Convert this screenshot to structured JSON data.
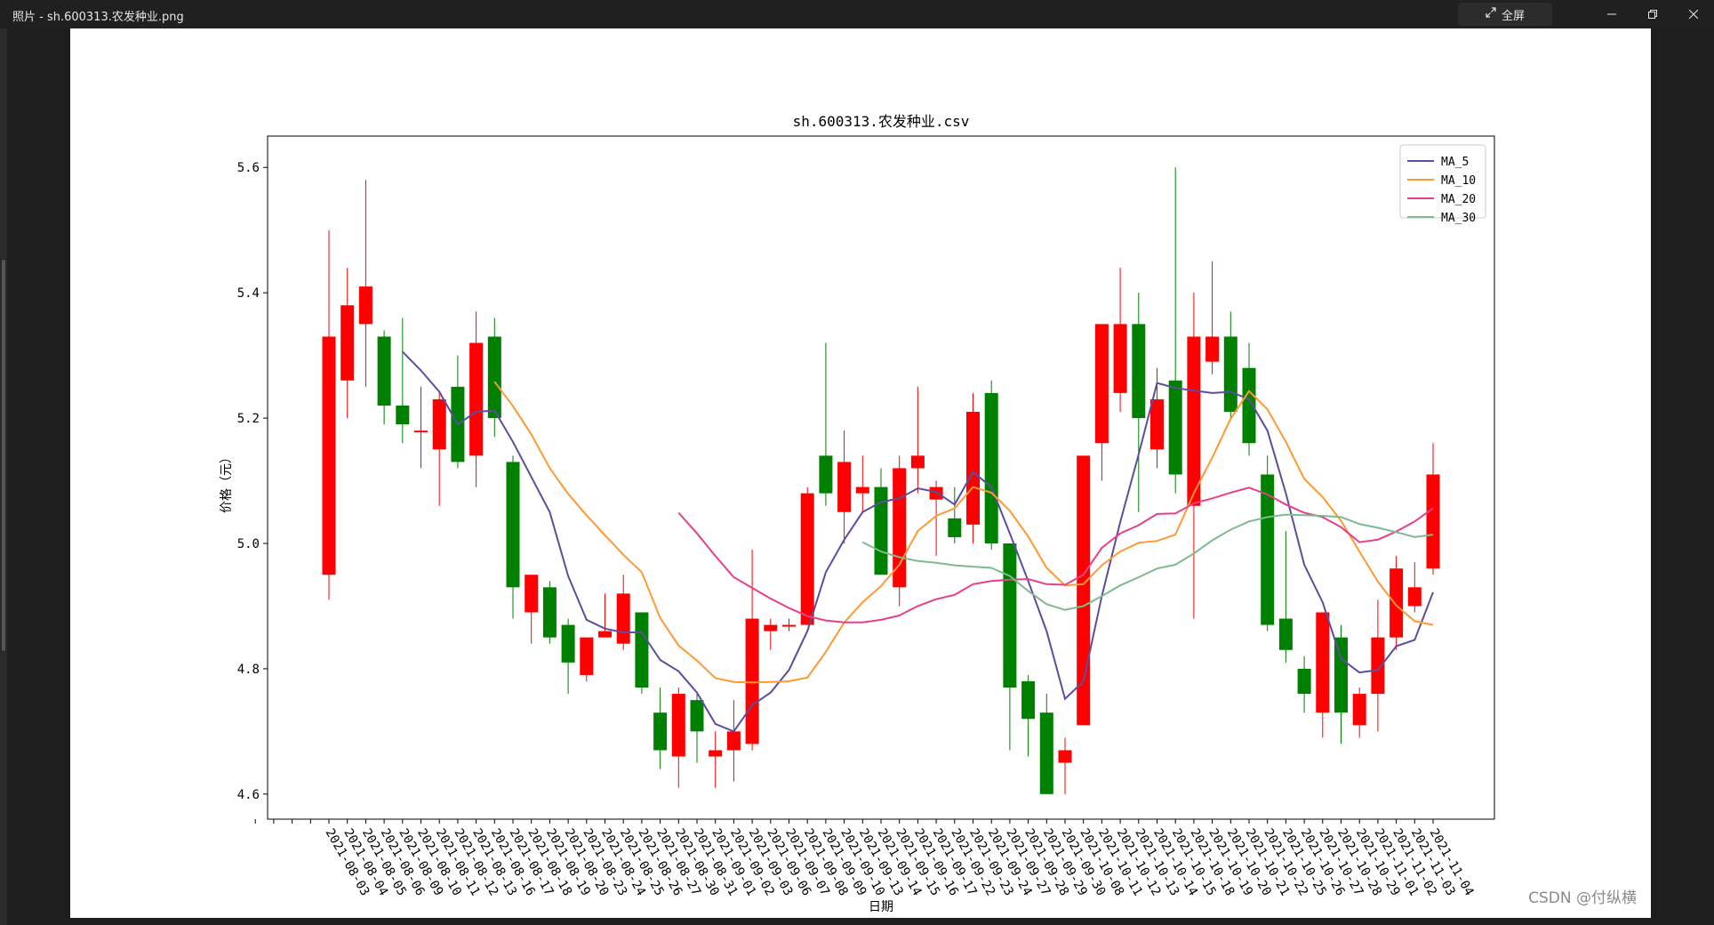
{
  "window": {
    "title": "照片 - sh.600313.农发种业.png",
    "fullscreen_label": "全屏",
    "minimize_icon": "minimize-icon",
    "restore_icon": "restore-icon",
    "close_icon": "close-icon"
  },
  "watermark": "CSDN @付纵横",
  "colors": {
    "up": "#ff0000",
    "down": "#008000",
    "ma5": "#5b4da0",
    "ma10": "#ff9933",
    "ma20": "#e6408a",
    "ma30": "#7dbb8f"
  },
  "chart_data": {
    "type": "candlestick",
    "title": "sh.600313.农发种业.csv",
    "xlabel": "日期",
    "ylabel": "价格（元）",
    "ylim": [
      4.56,
      5.65
    ],
    "yticks": [
      "4.6",
      "4.8",
      "5.0",
      "5.2",
      "5.4",
      "5.6"
    ],
    "legend": {
      "position": "top-right",
      "entries": [
        "MA_5",
        "MA_10",
        "MA_20",
        "MA_30"
      ]
    },
    "dates": [
      "2021-08-03",
      "2021-08-04",
      "2021-08-05",
      "2021-08-06",
      "2021-08-09",
      "2021-08-10",
      "2021-08-11",
      "2021-08-12",
      "2021-08-13",
      "2021-08-16",
      "2021-08-17",
      "2021-08-18",
      "2021-08-19",
      "2021-08-20",
      "2021-08-23",
      "2021-08-24",
      "2021-08-25",
      "2021-08-26",
      "2021-08-27",
      "2021-08-30",
      "2021-08-31",
      "2021-09-01",
      "2021-09-02",
      "2021-09-03",
      "2021-09-06",
      "2021-09-07",
      "2021-09-08",
      "2021-09-09",
      "2021-09-10",
      "2021-09-13",
      "2021-09-14",
      "2021-09-15",
      "2021-09-16",
      "2021-09-17",
      "2021-09-22",
      "2021-09-23",
      "2021-09-24",
      "2021-09-27",
      "2021-09-28",
      "2021-09-29",
      "2021-09-30",
      "2021-10-08",
      "2021-10-11",
      "2021-10-12",
      "2021-10-13",
      "2021-10-14",
      "2021-10-15",
      "2021-10-18",
      "2021-10-19",
      "2021-10-20",
      "2021-10-21",
      "2021-10-22",
      "2021-10-25",
      "2021-10-26",
      "2021-10-27",
      "2021-10-28",
      "2021-10-29",
      "2021-11-01",
      "2021-11-02",
      "2021-11-03",
      "2021-11-04"
    ],
    "candles": [
      {
        "o": 4.95,
        "c": 5.33,
        "h": 5.5,
        "l": 4.91
      },
      {
        "o": 5.26,
        "c": 5.38,
        "h": 5.44,
        "l": 5.2
      },
      {
        "o": 5.35,
        "c": 5.41,
        "h": 5.58,
        "l": 5.25
      },
      {
        "o": 5.33,
        "c": 5.22,
        "h": 5.34,
        "l": 5.19
      },
      {
        "o": 5.22,
        "c": 5.19,
        "h": 5.36,
        "l": 5.16
      },
      {
        "o": 5.18,
        "c": 5.18,
        "h": 5.25,
        "l": 5.12
      },
      {
        "o": 5.15,
        "c": 5.23,
        "h": 5.24,
        "l": 5.06
      },
      {
        "o": 5.25,
        "c": 5.13,
        "h": 5.3,
        "l": 5.12
      },
      {
        "o": 5.14,
        "c": 5.32,
        "h": 5.37,
        "l": 5.09
      },
      {
        "o": 5.33,
        "c": 5.2,
        "h": 5.36,
        "l": 5.17
      },
      {
        "o": 5.13,
        "c": 4.93,
        "h": 5.14,
        "l": 4.88
      },
      {
        "o": 4.89,
        "c": 4.95,
        "h": 4.95,
        "l": 4.84
      },
      {
        "o": 4.93,
        "c": 4.85,
        "h": 4.94,
        "l": 4.84
      },
      {
        "o": 4.87,
        "c": 4.81,
        "h": 4.88,
        "l": 4.76
      },
      {
        "o": 4.79,
        "c": 4.85,
        "h": 4.85,
        "l": 4.78
      },
      {
        "o": 4.85,
        "c": 4.86,
        "h": 4.92,
        "l": 4.85
      },
      {
        "o": 4.84,
        "c": 4.92,
        "h": 4.95,
        "l": 4.83
      },
      {
        "o": 4.89,
        "c": 4.77,
        "h": 4.89,
        "l": 4.76
      },
      {
        "o": 4.73,
        "c": 4.67,
        "h": 4.77,
        "l": 4.64
      },
      {
        "o": 4.66,
        "c": 4.76,
        "h": 4.77,
        "l": 4.61
      },
      {
        "o": 4.75,
        "c": 4.7,
        "h": 4.76,
        "l": 4.65
      },
      {
        "o": 4.66,
        "c": 4.67,
        "h": 4.7,
        "l": 4.61
      },
      {
        "o": 4.67,
        "c": 4.7,
        "h": 4.75,
        "l": 4.62
      },
      {
        "o": 4.68,
        "c": 4.88,
        "h": 4.99,
        "l": 4.67
      },
      {
        "o": 4.86,
        "c": 4.87,
        "h": 4.88,
        "l": 4.83
      },
      {
        "o": 4.87,
        "c": 4.87,
        "h": 4.88,
        "l": 4.86
      },
      {
        "o": 4.87,
        "c": 5.08,
        "h": 5.09,
        "l": 4.87
      },
      {
        "o": 5.14,
        "c": 5.08,
        "h": 5.32,
        "l": 5.06
      },
      {
        "o": 5.05,
        "c": 5.13,
        "h": 5.18,
        "l": 5.0
      },
      {
        "o": 5.08,
        "c": 5.09,
        "h": 5.14,
        "l": 5.05
      },
      {
        "o": 5.09,
        "c": 4.95,
        "h": 5.12,
        "l": 4.95
      },
      {
        "o": 4.93,
        "c": 5.12,
        "h": 5.14,
        "l": 4.9
      },
      {
        "o": 5.12,
        "c": 5.14,
        "h": 5.25,
        "l": 5.08
      },
      {
        "o": 5.07,
        "c": 5.09,
        "h": 5.1,
        "l": 4.98
      },
      {
        "o": 5.04,
        "c": 5.01,
        "h": 5.09,
        "l": 5.0
      },
      {
        "o": 5.03,
        "c": 5.21,
        "h": 5.24,
        "l": 5.0
      },
      {
        "o": 5.24,
        "c": 5.0,
        "h": 5.26,
        "l": 4.99
      },
      {
        "o": 5.0,
        "c": 4.77,
        "h": 5.0,
        "l": 4.67
      },
      {
        "o": 4.78,
        "c": 4.72,
        "h": 4.79,
        "l": 4.66
      },
      {
        "o": 4.73,
        "c": 4.6,
        "h": 4.76,
        "l": 4.6
      },
      {
        "o": 4.65,
        "c": 4.67,
        "h": 4.69,
        "l": 4.6
      },
      {
        "o": 4.71,
        "c": 5.14,
        "h": 5.14,
        "l": 4.71
      },
      {
        "o": 5.16,
        "c": 5.35,
        "h": 5.35,
        "l": 5.1
      },
      {
        "o": 5.24,
        "c": 5.35,
        "h": 5.44,
        "l": 5.21
      },
      {
        "o": 5.35,
        "c": 5.2,
        "h": 5.4,
        "l": 5.05
      },
      {
        "o": 5.15,
        "c": 5.23,
        "h": 5.28,
        "l": 5.12
      },
      {
        "o": 5.26,
        "c": 5.11,
        "h": 5.6,
        "l": 5.08
      },
      {
        "o": 5.06,
        "c": 5.33,
        "h": 5.4,
        "l": 4.88
      },
      {
        "o": 5.29,
        "c": 5.33,
        "h": 5.45,
        "l": 5.27
      },
      {
        "o": 5.33,
        "c": 5.21,
        "h": 5.37,
        "l": 5.2
      },
      {
        "o": 5.28,
        "c": 5.16,
        "h": 5.32,
        "l": 5.14
      },
      {
        "o": 5.11,
        "c": 4.87,
        "h": 5.14,
        "l": 4.86
      },
      {
        "o": 4.88,
        "c": 4.83,
        "h": 5.02,
        "l": 4.81
      },
      {
        "o": 4.8,
        "c": 4.76,
        "h": 4.82,
        "l": 4.73
      },
      {
        "o": 4.73,
        "c": 4.89,
        "h": 4.89,
        "l": 4.69
      },
      {
        "o": 4.85,
        "c": 4.73,
        "h": 4.87,
        "l": 4.68
      },
      {
        "o": 4.71,
        "c": 4.76,
        "h": 4.77,
        "l": 4.69
      },
      {
        "o": 4.76,
        "c": 4.85,
        "h": 4.91,
        "l": 4.7
      },
      {
        "o": 4.85,
        "c": 4.96,
        "h": 4.98,
        "l": 4.83
      },
      {
        "o": 4.9,
        "c": 4.93,
        "h": 4.97,
        "l": 4.89
      },
      {
        "o": 4.96,
        "c": 5.11,
        "h": 5.16,
        "l": 4.95
      }
    ],
    "series": [
      {
        "name": "MA_5",
        "values": [
          null,
          null,
          null,
          null,
          5.306,
          5.276,
          5.242,
          5.19,
          5.21,
          5.212,
          5.162,
          5.106,
          5.05,
          4.948,
          4.878,
          4.864,
          4.858,
          4.858,
          4.814,
          4.796,
          4.762,
          4.712,
          4.7,
          4.742,
          4.762,
          4.798,
          4.86,
          4.954,
          5.006,
          5.05,
          5.066,
          5.072,
          5.088,
          5.082,
          5.062,
          5.114,
          5.09,
          5.016,
          4.94,
          4.86,
          4.752,
          4.78,
          4.916,
          5.034,
          5.142,
          5.256,
          5.248,
          5.244,
          5.24,
          5.242,
          5.23,
          5.18,
          5.08,
          4.966,
          4.906,
          4.816,
          4.794,
          4.798,
          4.836,
          4.846,
          4.922
        ]
      },
      {
        "name": "MA_10",
        "values": [
          null,
          null,
          null,
          null,
          null,
          null,
          null,
          null,
          null,
          5.258,
          5.219,
          5.174,
          5.12,
          5.079,
          5.045,
          5.013,
          4.982,
          4.954,
          4.881,
          4.837,
          4.813,
          4.785,
          4.779,
          4.778,
          4.779,
          4.78,
          4.786,
          4.827,
          4.874,
          4.906,
          4.932,
          4.966,
          5.02,
          5.044,
          5.056,
          5.09,
          5.081,
          5.052,
          5.011,
          4.961,
          4.933,
          4.935,
          4.965,
          4.987,
          5.001,
          5.004,
          5.014,
          5.08,
          5.137,
          5.199,
          5.243,
          5.214,
          5.162,
          5.103,
          5.074,
          5.036,
          4.987,
          4.939,
          4.901,
          4.876,
          4.87
        ]
      },
      {
        "name": "MA_20",
        "values": [
          null,
          null,
          null,
          null,
          null,
          null,
          null,
          null,
          null,
          null,
          null,
          null,
          null,
          null,
          null,
          null,
          null,
          null,
          null,
          5.049,
          5.016,
          4.98,
          4.946,
          4.929,
          4.912,
          4.897,
          4.884,
          4.877,
          4.874,
          4.874,
          4.878,
          4.885,
          4.9,
          4.911,
          4.918,
          4.935,
          4.94,
          4.942,
          4.943,
          4.935,
          4.934,
          4.95,
          4.993,
          5.016,
          5.029,
          5.047,
          5.048,
          5.064,
          5.072,
          5.081,
          5.089,
          5.078,
          5.062,
          5.049,
          5.042,
          5.026,
          5.002,
          5.006,
          5.019,
          5.035,
          5.056
        ]
      },
      {
        "name": "MA_30",
        "values": [
          null,
          null,
          null,
          null,
          null,
          null,
          null,
          null,
          null,
          null,
          null,
          null,
          null,
          null,
          null,
          null,
          null,
          null,
          null,
          null,
          null,
          null,
          null,
          null,
          null,
          null,
          null,
          null,
          null,
          5.002,
          4.987,
          4.978,
          4.972,
          4.969,
          4.965,
          4.963,
          4.961,
          4.948,
          4.924,
          4.903,
          4.894,
          4.9,
          4.916,
          4.933,
          4.946,
          4.96,
          4.966,
          4.984,
          5.005,
          5.022,
          5.035,
          5.042,
          5.046,
          5.045,
          5.044,
          5.042,
          5.031,
          5.025,
          5.018,
          5.01,
          5.014
        ]
      }
    ]
  }
}
